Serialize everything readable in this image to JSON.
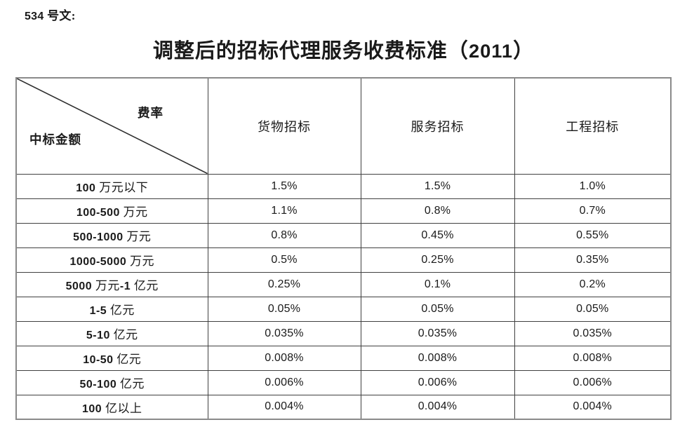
{
  "page": {
    "doc_label": "534 号文:",
    "title": "调整后的招标代理服务收费标准（2011）"
  },
  "fee_table": {
    "corner": {
      "rate_label": "费率",
      "amount_label": "中标金额"
    },
    "column_headers": [
      "货物招标",
      "服务招标",
      "工程招标"
    ],
    "rows": [
      {
        "label": "100 万元以下",
        "values": [
          "1.5%",
          "1.5%",
          "1.0%"
        ]
      },
      {
        "label": "100-500 万元",
        "values": [
          "1.1%",
          "0.8%",
          "0.7%"
        ]
      },
      {
        "label": "500-1000 万元",
        "values": [
          "0.8%",
          "0.45%",
          "0.55%"
        ]
      },
      {
        "label": "1000-5000 万元",
        "values": [
          "0.5%",
          "0.25%",
          "0.35%"
        ]
      },
      {
        "label": "5000 万元-1 亿元",
        "values": [
          "0.25%",
          "0.1%",
          "0.2%"
        ]
      },
      {
        "label": "1-5 亿元",
        "values": [
          "0.05%",
          "0.05%",
          "0.05%"
        ]
      },
      {
        "label": "5-10 亿元",
        "values": [
          "0.035%",
          "0.035%",
          "0.035%"
        ]
      },
      {
        "label": "10-50 亿元",
        "values": [
          "0.008%",
          "0.008%",
          "0.008%"
        ]
      },
      {
        "label": "50-100 亿元",
        "values": [
          "0.006%",
          "0.006%",
          "0.006%"
        ]
      },
      {
        "label": "100 亿以上",
        "values": [
          "0.004%",
          "0.004%",
          "0.004%"
        ]
      }
    ],
    "colors": {
      "text": "#1a1a1a",
      "inner_border": "#404040",
      "outer_border": "#8a8a8a",
      "background": "#ffffff"
    }
  }
}
